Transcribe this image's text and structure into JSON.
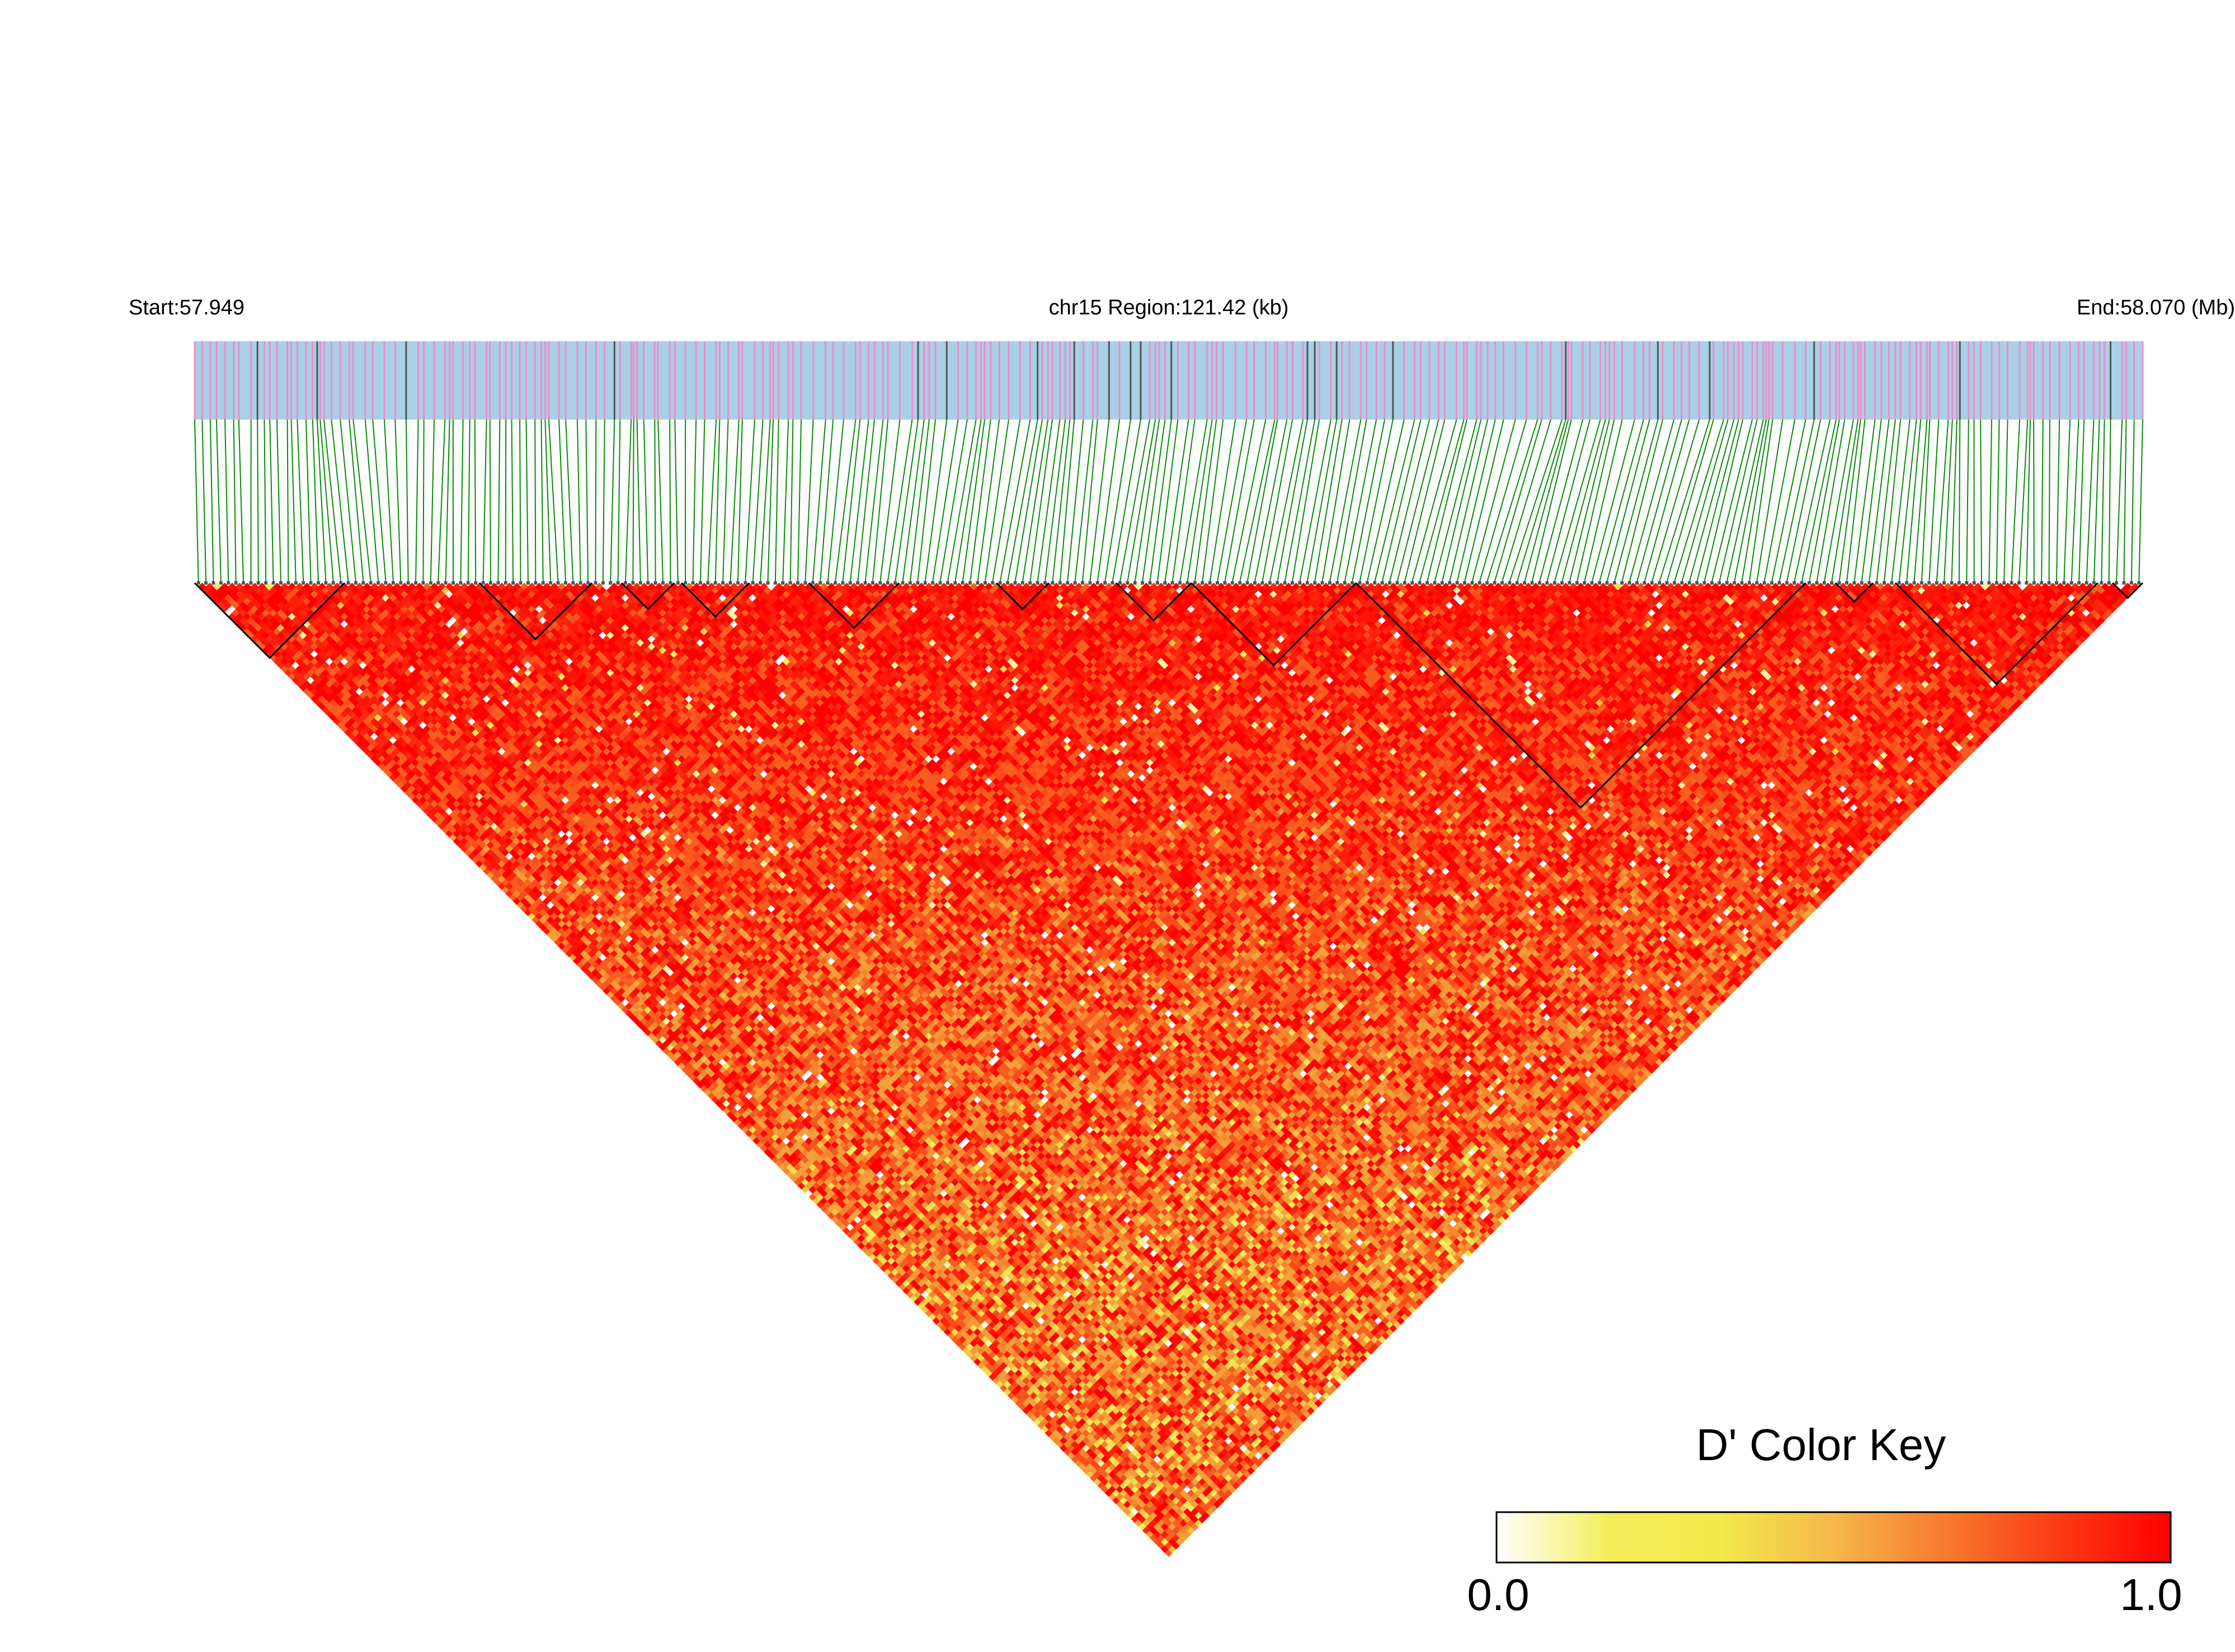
{
  "chart_data": {
    "type": "heatmap",
    "title": "",
    "region": {
      "start_label": "Start:57.949",
      "center_label": "chr15 Region:121.42 (kb)",
      "end_label": "End:58.070 (Mb)",
      "chromosome": "chr15",
      "start_mb": 57.949,
      "end_mb": 58.07,
      "length_kb": 121.42
    },
    "marker_count": 260,
    "blocks": [
      {
        "from": 0,
        "to": 19
      },
      {
        "from": 38,
        "to": 52
      },
      {
        "from": 57,
        "to": 63
      },
      {
        "from": 65,
        "to": 73
      },
      {
        "from": 82,
        "to": 93
      },
      {
        "from": 107,
        "to": 113
      },
      {
        "from": 123,
        "to": 132
      },
      {
        "from": 133,
        "to": 154
      },
      {
        "from": 155,
        "to": 214
      },
      {
        "from": 219,
        "to": 223
      },
      {
        "from": 227,
        "to": 253
      },
      {
        "from": 256,
        "to": 259
      }
    ],
    "color_key": {
      "title": "D' Color Key",
      "min_label": "0.0",
      "max_label": "1.0",
      "min": 0.0,
      "max": 1.0,
      "colors": [
        "#ffffff",
        "#f5ee5a",
        "#f2e94a",
        "#f6b84a",
        "#f77a2e",
        "#fb3a14",
        "#ff0000"
      ]
    },
    "track_colors": {
      "band": "#a8d0e6",
      "snp_tick": "#f08cc8",
      "connector": "#0a8a0a",
      "block_outline": "#000000"
    }
  }
}
